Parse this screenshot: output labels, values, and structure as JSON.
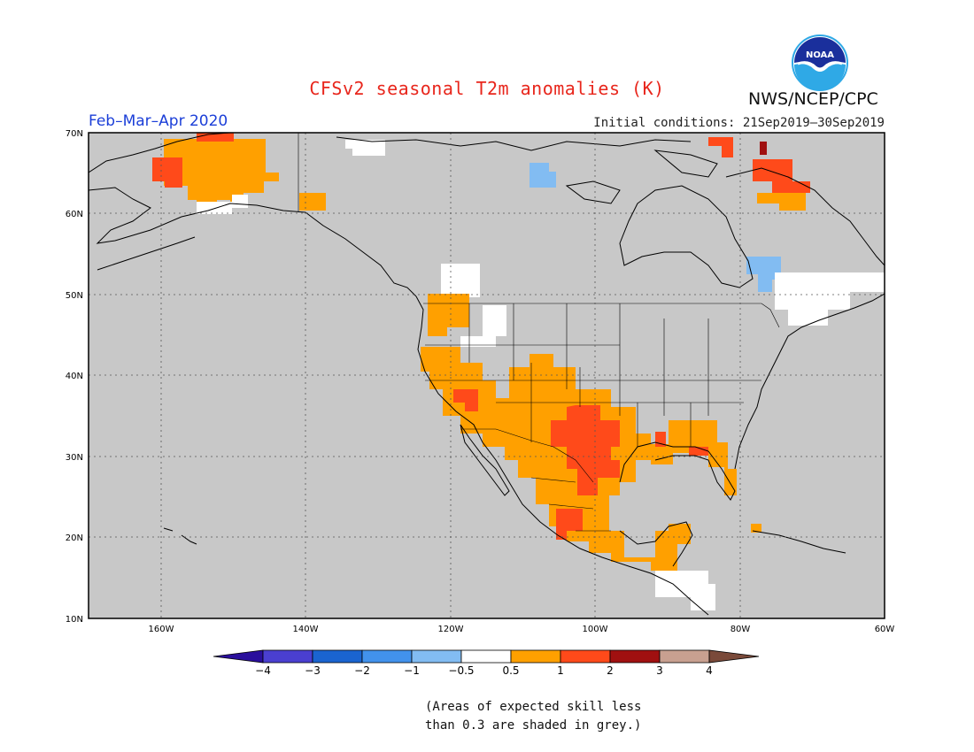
{
  "title": "CFSv2 seasonal T2m anomalies (K)",
  "organization": "NWS/NCEP/CPC",
  "logo_text": "NOAA",
  "period": "Feb–Mar–Apr 2020",
  "initial_conditions": "Initial conditions: 21Sep2019–30Sep2019",
  "map_extent": {
    "lon_min": -170,
    "lon_max": -60,
    "lat_min": 10,
    "lat_max": 70
  },
  "lat_labels": [
    "10N",
    "20N",
    "30N",
    "40N",
    "50N",
    "60N",
    "70N"
  ],
  "lon_labels": [
    "160W",
    "140W",
    "120W",
    "100W",
    "80W",
    "60W"
  ],
  "colorbar": {
    "ticks": [
      "−4",
      "−3",
      "−2",
      "−1",
      "−0.5",
      "0.5",
      "1",
      "2",
      "3",
      "4"
    ],
    "colors": [
      "#2a0f9c",
      "#4a3fd0",
      "#1a64d0",
      "#4292ec",
      "#82bcf2",
      "#ffffff",
      "#ffa000",
      "#ff4a1a",
      "#a01010",
      "#c8a090",
      "#7a4a3a"
    ]
  },
  "note_line1": "(Areas of expected skill less",
  "note_line2": "than 0.3 are shaded in grey.)",
  "colors": {
    "grey": "#c8c8c8",
    "orange": "#ffa000",
    "red": "#ff4a1a",
    "darkred": "#a01010",
    "lightblue": "#82bcf2",
    "white": "#ffffff",
    "title": "#e8261c",
    "period": "#1c3fd8"
  }
}
